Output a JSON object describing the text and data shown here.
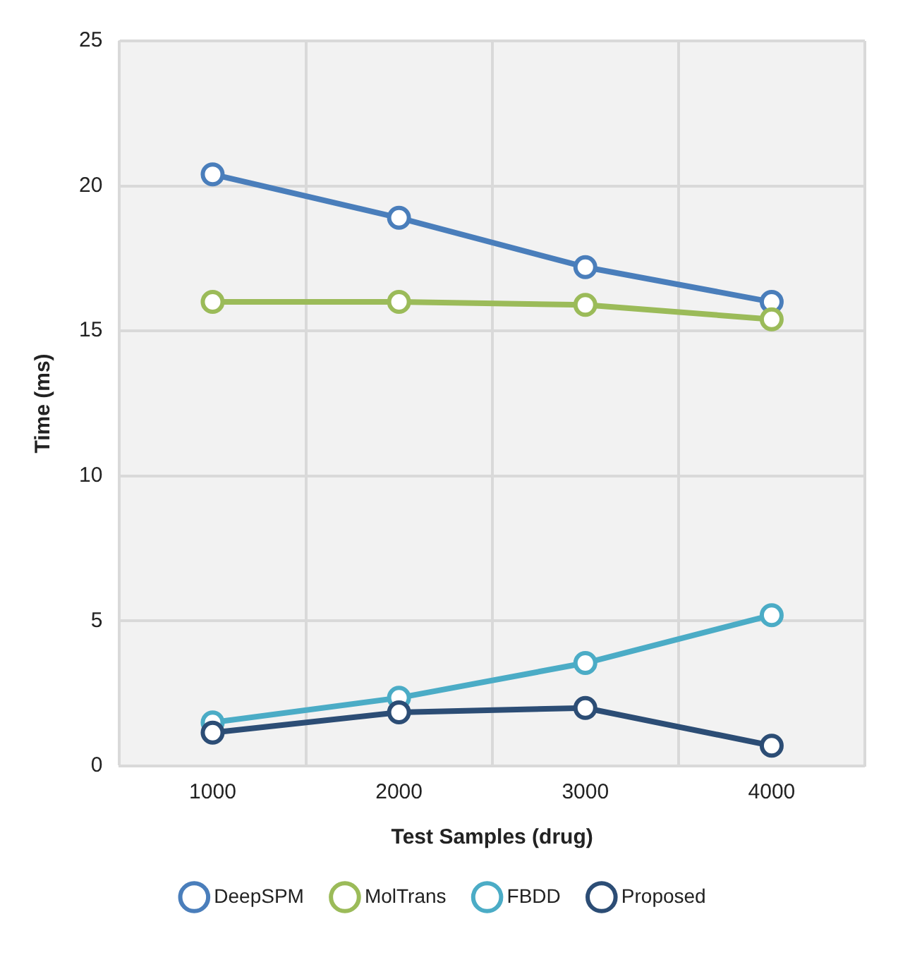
{
  "chart_data": {
    "type": "line",
    "xlabel": "Test Samples (drug)",
    "ylabel": "Time (ms)",
    "categories": [
      "1000",
      "2000",
      "3000",
      "4000"
    ],
    "series": [
      {
        "name": "DeepSPM",
        "color": "#4a7ebb",
        "values": [
          20.4,
          18.9,
          17.2,
          16.0
        ]
      },
      {
        "name": "MolTrans",
        "color": "#9bbb59",
        "values": [
          16.0,
          16.0,
          15.9,
          15.4
        ]
      },
      {
        "name": "FBDD",
        "color": "#4bacc6",
        "values": [
          1.5,
          2.35,
          3.55,
          5.2
        ]
      },
      {
        "name": "Proposed",
        "color": "#2c4d75",
        "values": [
          1.15,
          1.85,
          2.0,
          0.7
        ]
      }
    ],
    "ylim": [
      0,
      25
    ],
    "yticks": [
      0,
      5,
      10,
      15,
      20,
      25
    ],
    "grid": true,
    "legend": "bottom",
    "marker": "circle",
    "line_style": "solid"
  }
}
